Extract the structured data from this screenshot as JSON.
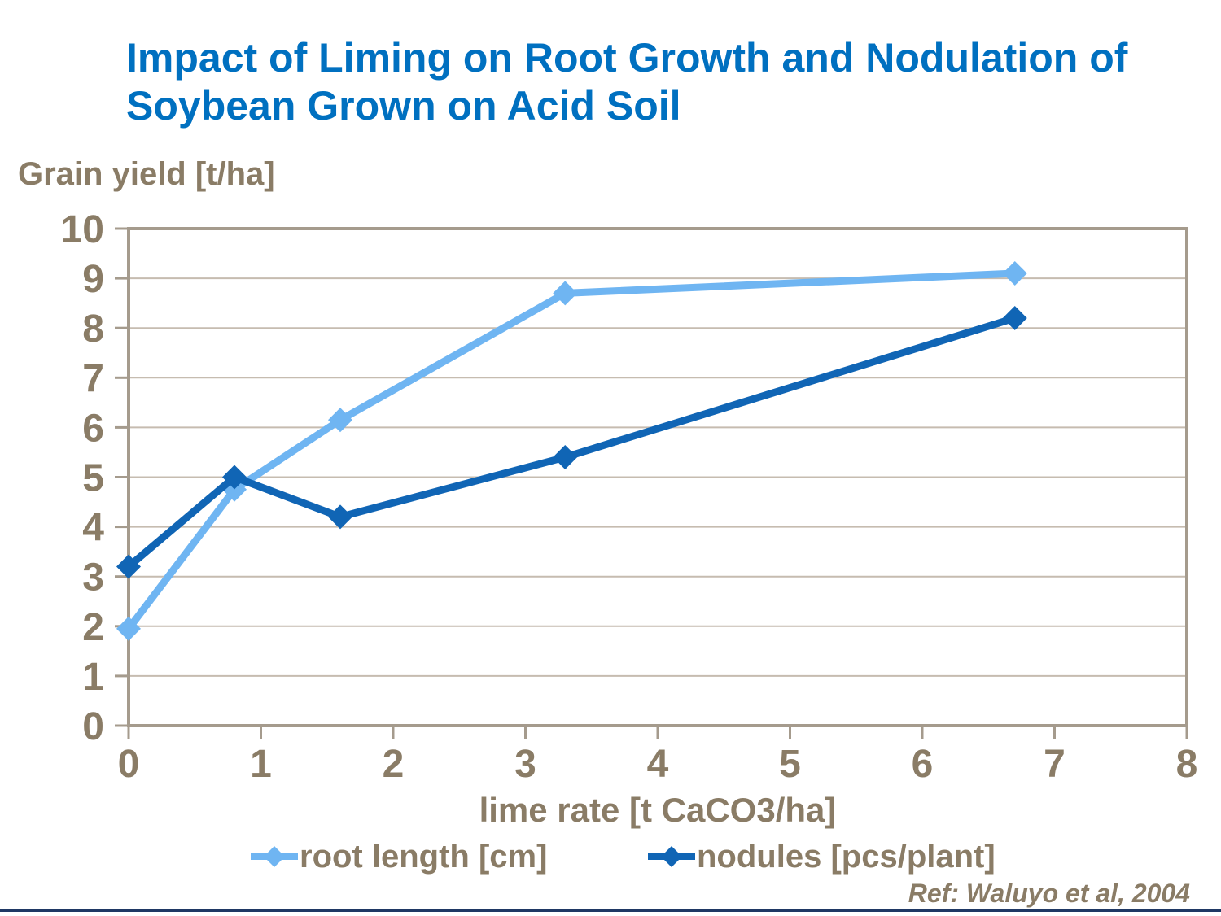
{
  "slide": {
    "title_line1": "Impact of Liming on Root Growth and Nodulation of",
    "title_line2": "Soybean Grown on Acid Soil",
    "reference": "Ref: Waluyo et al, 2004"
  },
  "chart_data": {
    "type": "line",
    "title": "Impact of Liming on Root Growth and Nodulation of Soybean Grown on Acid Soil",
    "ylabel": "Grain yield [t/ha]",
    "xlabel": "lime rate [t CaCO3/ha]",
    "x": [
      0,
      0.8,
      1.6,
      3.3,
      6.7
    ],
    "series": [
      {
        "name": "root length [cm]",
        "color": "#6FB5F2",
        "values": [
          1.95,
          4.75,
          6.15,
          8.7,
          9.1
        ]
      },
      {
        "name": "nodules [pcs/plant]",
        "color": "#1065B5",
        "values": [
          3.2,
          5.0,
          4.2,
          5.4,
          8.2
        ]
      }
    ],
    "xlim": [
      0,
      8
    ],
    "ylim": [
      0,
      10
    ],
    "x_ticks": [
      0,
      1,
      2,
      3,
      4,
      5,
      6,
      7,
      8
    ],
    "y_ticks": [
      0,
      1,
      2,
      3,
      4,
      5,
      6,
      7,
      8,
      9,
      10
    ],
    "grid": "horizontal",
    "legend_position": "bottom",
    "marker": "diamond"
  },
  "colors": {
    "title": "#0070C0",
    "body_text": "#8A7C66",
    "gridline": "#C6BCB0",
    "axis_border": "#A59B8D",
    "footer_bar": "#1F3864",
    "background": "#FFFFFF"
  }
}
